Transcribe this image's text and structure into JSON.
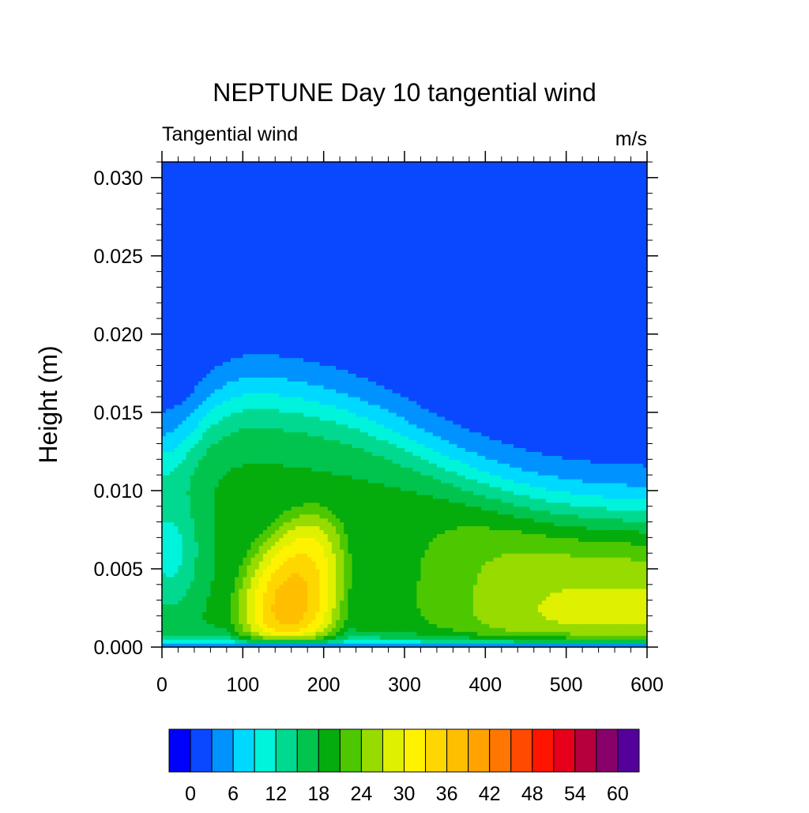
{
  "chart_data": {
    "type": "heatmap",
    "title": "NEPTUNE Day 10 tangential wind",
    "subtitle_left": "Tangential wind",
    "subtitle_right": "m/s",
    "xlabel": "",
    "ylabel": "Height (m)",
    "xlim": [
      0,
      600
    ],
    "ylim": [
      0,
      0.031
    ],
    "x_ticks": [
      0,
      100,
      200,
      300,
      400,
      500,
      600
    ],
    "x_tick_labels": [
      "0",
      "100",
      "200",
      "300",
      "400",
      "500",
      "600"
    ],
    "y_ticks": [
      0.0,
      0.005,
      0.01,
      0.015,
      0.02,
      0.025,
      0.03
    ],
    "y_tick_labels": [
      "0.000",
      "0.005",
      "0.010",
      "0.015",
      "0.020",
      "0.025",
      "0.030"
    ],
    "grid": false,
    "levels": [
      0,
      3,
      6,
      9,
      12,
      15,
      18,
      21,
      24,
      27,
      30,
      33,
      36,
      39,
      42,
      45,
      48,
      51,
      54,
      57,
      60
    ],
    "colorbar": {
      "colors": [
        "#0000ff",
        "#0a48ff",
        "#0093ff",
        "#00d9ff",
        "#00f3db",
        "#00d98f",
        "#00c44d",
        "#05ac0d",
        "#4dc800",
        "#97db00",
        "#dff000",
        "#fff200",
        "#ffd700",
        "#ffbf00",
        "#ffa300",
        "#ff7600",
        "#ff4a00",
        "#ff1400",
        "#e6001c",
        "#b5003d",
        "#88006a",
        "#55009a"
      ],
      "labels": [
        "0",
        "6",
        "12",
        "18",
        "24",
        "30",
        "36",
        "42",
        "48",
        "54",
        "60"
      ],
      "label_levels": [
        0,
        6,
        12,
        18,
        24,
        30,
        36,
        42,
        48,
        54,
        60
      ]
    },
    "features": {
      "jet_core_max_ms": 43,
      "jet_core_x": 155,
      "jet_core_height_m": 0.002,
      "upper_layer_max_ms": 3,
      "near_zero_band_height_m": [
        0.019,
        0.024
      ]
    }
  }
}
